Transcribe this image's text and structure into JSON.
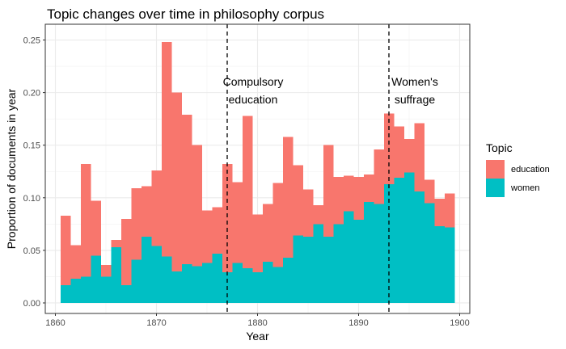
{
  "chart_data": {
    "type": "bar",
    "title": "Topic changes over time in philosophy corpus",
    "xlabel": "Year",
    "ylabel": "Proportion of documents in year",
    "xlim": [
      1859,
      1901
    ],
    "ylim": [
      -0.01,
      0.265
    ],
    "x_ticks": [
      1860,
      1870,
      1880,
      1890,
      1900
    ],
    "y_ticks": [
      0.0,
      0.05,
      0.1,
      0.15,
      0.2,
      0.25
    ],
    "y_tick_labels": [
      "0.00",
      "0.05",
      "0.10",
      "0.15",
      "0.20",
      "0.25"
    ],
    "grid": true,
    "stacked": true,
    "bin_start": 1860.5,
    "bin_width": 1,
    "legend": {
      "title": "Topic",
      "placement": "right",
      "entries": [
        {
          "name": "education",
          "color": "#F8766D"
        },
        {
          "name": "women",
          "color": "#00BFC4"
        }
      ]
    },
    "series": [
      {
        "name": "women",
        "color": "#00BFC4",
        "values": [
          0.017,
          0.023,
          0.025,
          0.045,
          0.025,
          0.053,
          0.017,
          0.041,
          0.063,
          0.054,
          0.044,
          0.03,
          0.037,
          0.035,
          0.038,
          0.047,
          0.029,
          0.038,
          0.033,
          0.029,
          0.039,
          0.034,
          0.043,
          0.064,
          0.063,
          0.075,
          0.063,
          0.075,
          0.087,
          0.079,
          0.096,
          0.094,
          0.113,
          0.119,
          0.124,
          0.106,
          0.095,
          0.073,
          0.072
        ]
      },
      {
        "name": "education",
        "color": "#F8766D",
        "values": [
          0.066,
          0.032,
          0.107,
          0.052,
          0.011,
          0.007,
          0.063,
          0.068,
          0.048,
          0.072,
          0.204,
          0.17,
          0.142,
          0.115,
          0.05,
          0.044,
          0.103,
          0.077,
          0.145,
          0.055,
          0.055,
          0.08,
          0.115,
          0.067,
          0.045,
          0.018,
          0.087,
          0.045,
          0.034,
          0.041,
          0.026,
          0.052,
          0.067,
          0.049,
          0.032,
          0.065,
          0.022,
          0.026,
          0.032
        ]
      }
    ],
    "vlines": [
      {
        "x": 1877,
        "label_lines": [
          "Compulsory",
          "education"
        ]
      },
      {
        "x": 1893,
        "label_lines": [
          "Women's",
          "suffrage"
        ]
      }
    ]
  }
}
